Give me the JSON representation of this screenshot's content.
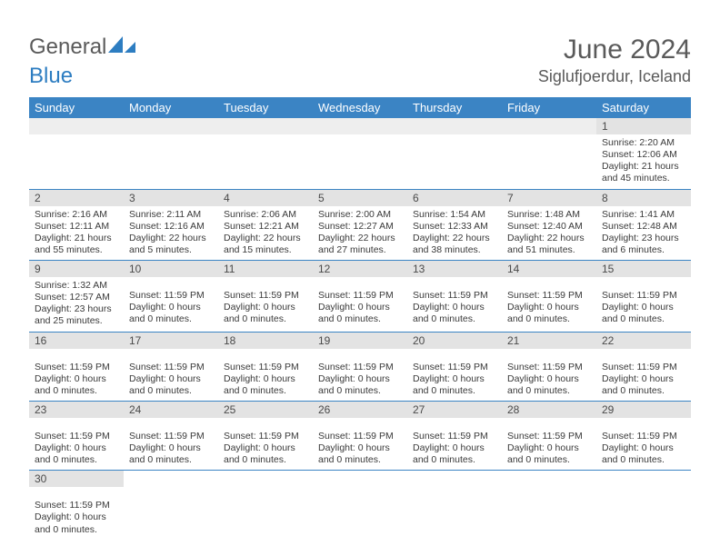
{
  "logo": {
    "text1": "General",
    "text2": "Blue"
  },
  "title": "June 2024",
  "location": "Siglufjoerdur, Iceland",
  "colors": {
    "header_bg": "#3b84c4",
    "header_text": "#ffffff",
    "daynum_bg": "#e3e3e3",
    "body_text": "#3a3a3a",
    "title_text": "#5a5a5a",
    "logo_blue": "#2d7dc1",
    "rule": "#3b84c4"
  },
  "day_labels": [
    "Sunday",
    "Monday",
    "Tuesday",
    "Wednesday",
    "Thursday",
    "Friday",
    "Saturday"
  ],
  "weeks": [
    [
      {
        "n": "",
        "lines": []
      },
      {
        "n": "",
        "lines": []
      },
      {
        "n": "",
        "lines": []
      },
      {
        "n": "",
        "lines": []
      },
      {
        "n": "",
        "lines": []
      },
      {
        "n": "",
        "lines": []
      },
      {
        "n": "1",
        "lines": [
          "Sunrise: 2:20 AM",
          "Sunset: 12:06 AM",
          "Daylight: 21 hours and 45 minutes."
        ]
      }
    ],
    [
      {
        "n": "2",
        "lines": [
          "Sunrise: 2:16 AM",
          "Sunset: 12:11 AM",
          "Daylight: 21 hours and 55 minutes."
        ]
      },
      {
        "n": "3",
        "lines": [
          "Sunrise: 2:11 AM",
          "Sunset: 12:16 AM",
          "Daylight: 22 hours and 5 minutes."
        ]
      },
      {
        "n": "4",
        "lines": [
          "Sunrise: 2:06 AM",
          "Sunset: 12:21 AM",
          "Daylight: 22 hours and 15 minutes."
        ]
      },
      {
        "n": "5",
        "lines": [
          "Sunrise: 2:00 AM",
          "Sunset: 12:27 AM",
          "Daylight: 22 hours and 27 minutes."
        ]
      },
      {
        "n": "6",
        "lines": [
          "Sunrise: 1:54 AM",
          "Sunset: 12:33 AM",
          "Daylight: 22 hours and 38 minutes."
        ]
      },
      {
        "n": "7",
        "lines": [
          "Sunrise: 1:48 AM",
          "Sunset: 12:40 AM",
          "Daylight: 22 hours and 51 minutes."
        ]
      },
      {
        "n": "8",
        "lines": [
          "Sunrise: 1:41 AM",
          "Sunset: 12:48 AM",
          "Daylight: 23 hours and 6 minutes."
        ]
      }
    ],
    [
      {
        "n": "9",
        "lines": [
          "Sunrise: 1:32 AM",
          "Sunset: 12:57 AM",
          "Daylight: 23 hours and 25 minutes."
        ]
      },
      {
        "n": "10",
        "lines": [
          "",
          "Sunset: 11:59 PM",
          "Daylight: 0 hours and 0 minutes."
        ]
      },
      {
        "n": "11",
        "lines": [
          "",
          "Sunset: 11:59 PM",
          "Daylight: 0 hours and 0 minutes."
        ]
      },
      {
        "n": "12",
        "lines": [
          "",
          "Sunset: 11:59 PM",
          "Daylight: 0 hours and 0 minutes."
        ]
      },
      {
        "n": "13",
        "lines": [
          "",
          "Sunset: 11:59 PM",
          "Daylight: 0 hours and 0 minutes."
        ]
      },
      {
        "n": "14",
        "lines": [
          "",
          "Sunset: 11:59 PM",
          "Daylight: 0 hours and 0 minutes."
        ]
      },
      {
        "n": "15",
        "lines": [
          "",
          "Sunset: 11:59 PM",
          "Daylight: 0 hours and 0 minutes."
        ]
      }
    ],
    [
      {
        "n": "16",
        "lines": [
          "",
          "Sunset: 11:59 PM",
          "Daylight: 0 hours and 0 minutes."
        ]
      },
      {
        "n": "17",
        "lines": [
          "",
          "Sunset: 11:59 PM",
          "Daylight: 0 hours and 0 minutes."
        ]
      },
      {
        "n": "18",
        "lines": [
          "",
          "Sunset: 11:59 PM",
          "Daylight: 0 hours and 0 minutes."
        ]
      },
      {
        "n": "19",
        "lines": [
          "",
          "Sunset: 11:59 PM",
          "Daylight: 0 hours and 0 minutes."
        ]
      },
      {
        "n": "20",
        "lines": [
          "",
          "Sunset: 11:59 PM",
          "Daylight: 0 hours and 0 minutes."
        ]
      },
      {
        "n": "21",
        "lines": [
          "",
          "Sunset: 11:59 PM",
          "Daylight: 0 hours and 0 minutes."
        ]
      },
      {
        "n": "22",
        "lines": [
          "",
          "Sunset: 11:59 PM",
          "Daylight: 0 hours and 0 minutes."
        ]
      }
    ],
    [
      {
        "n": "23",
        "lines": [
          "",
          "Sunset: 11:59 PM",
          "Daylight: 0 hours and 0 minutes."
        ]
      },
      {
        "n": "24",
        "lines": [
          "",
          "Sunset: 11:59 PM",
          "Daylight: 0 hours and 0 minutes."
        ]
      },
      {
        "n": "25",
        "lines": [
          "",
          "Sunset: 11:59 PM",
          "Daylight: 0 hours and 0 minutes."
        ]
      },
      {
        "n": "26",
        "lines": [
          "",
          "Sunset: 11:59 PM",
          "Daylight: 0 hours and 0 minutes."
        ]
      },
      {
        "n": "27",
        "lines": [
          "",
          "Sunset: 11:59 PM",
          "Daylight: 0 hours and 0 minutes."
        ]
      },
      {
        "n": "28",
        "lines": [
          "",
          "Sunset: 11:59 PM",
          "Daylight: 0 hours and 0 minutes."
        ]
      },
      {
        "n": "29",
        "lines": [
          "",
          "Sunset: 11:59 PM",
          "Daylight: 0 hours and 0 minutes."
        ]
      }
    ],
    [
      {
        "n": "30",
        "lines": [
          "",
          "Sunset: 11:59 PM",
          "Daylight: 0 hours and 0 minutes."
        ]
      },
      {
        "n": "",
        "lines": []
      },
      {
        "n": "",
        "lines": []
      },
      {
        "n": "",
        "lines": []
      },
      {
        "n": "",
        "lines": []
      },
      {
        "n": "",
        "lines": []
      },
      {
        "n": "",
        "lines": []
      }
    ]
  ]
}
